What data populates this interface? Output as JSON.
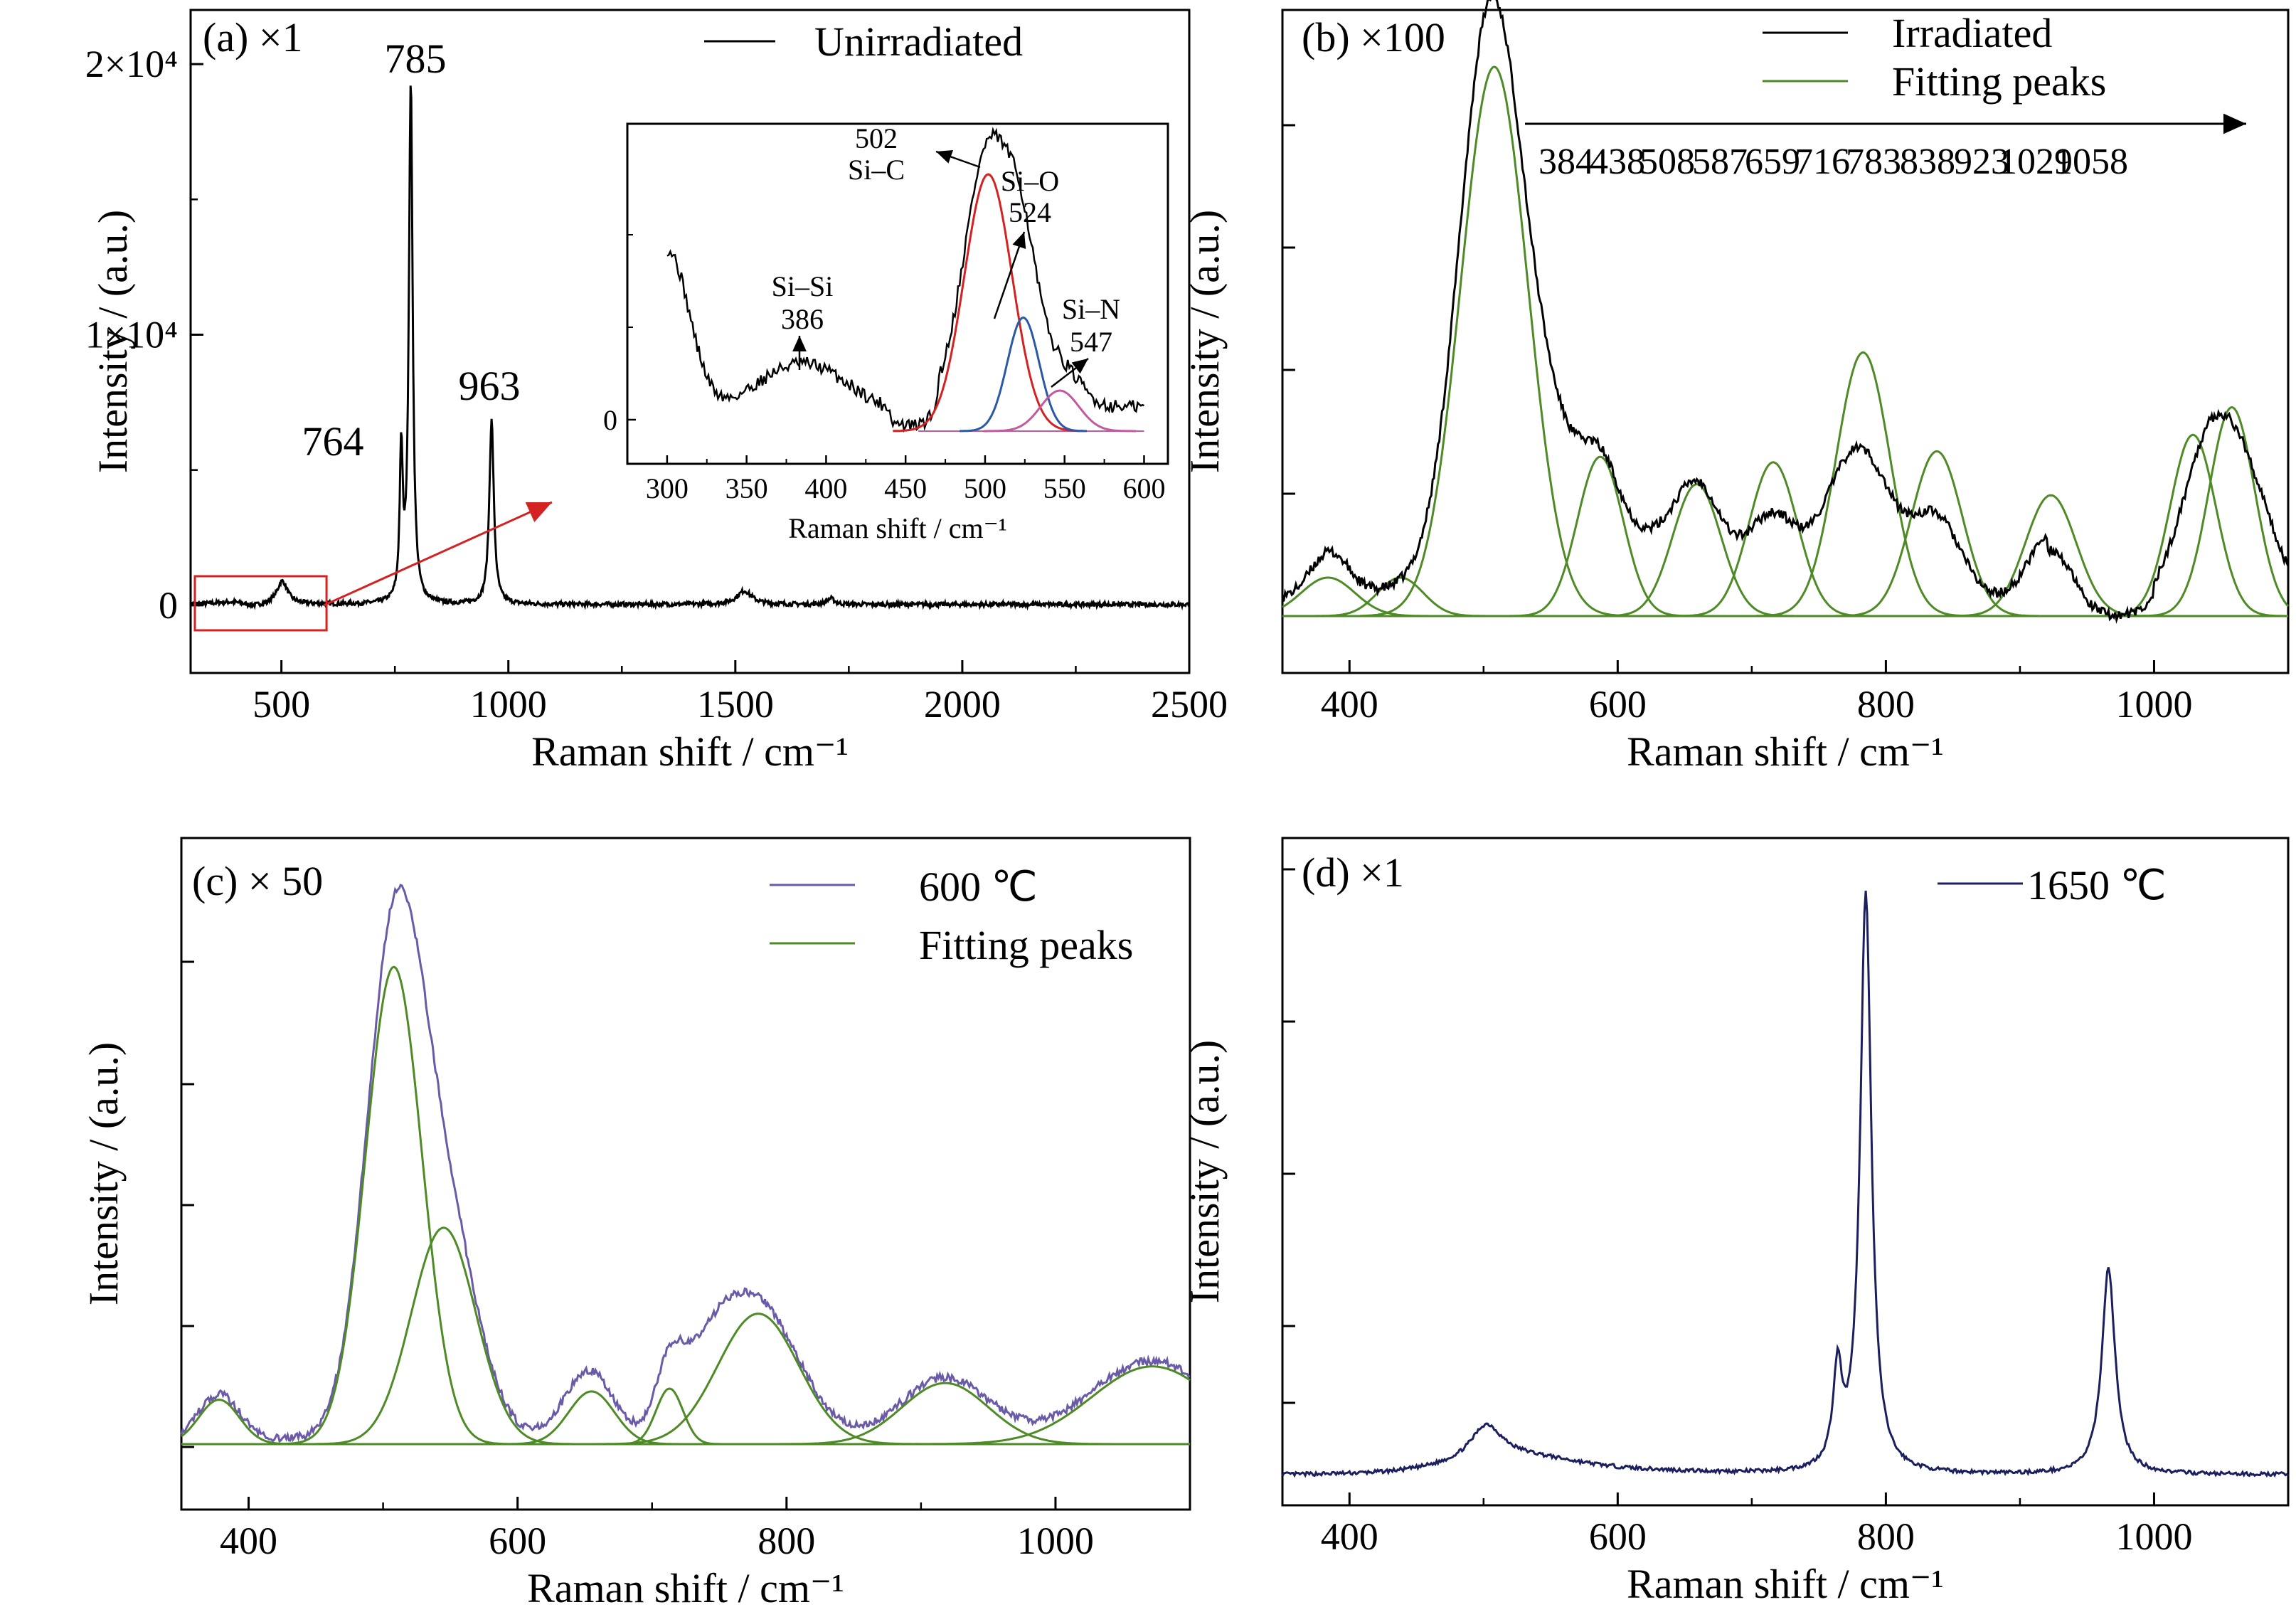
{
  "colors": {
    "black": "#000000",
    "fit_green": "#4e8a25",
    "purple": "#6a5aa8",
    "navy": "#1c1f5e",
    "red": "#d42121",
    "blue": "#2a59a6",
    "pink": "#c25a9e"
  },
  "chart_data": [
    {
      "panel": "a",
      "type": "line",
      "panel_label": "(a) ×1",
      "xlabel": "Raman shift / cm⁻¹",
      "ylabel": "Intensity / (a.u.)",
      "xlim": [
        300,
        2500
      ],
      "ylim": [
        -2500,
        22000
      ],
      "x_ticks": [
        "500",
        "1000",
        "1500",
        "2000",
        "2500"
      ],
      "y_ticks": [
        "0",
        "1×10⁴",
        "2×10⁴"
      ],
      "legend": [
        "Unirradiated"
      ],
      "legend_position": "top-right",
      "peak_labels": [
        "764",
        "785",
        "963"
      ],
      "series": [
        {
          "name": "Unirradiated",
          "peaks": [
            {
              "x": 385,
              "y": 80,
              "w": 40
            },
            {
              "x": 502,
              "y": 850,
              "w": 14
            },
            {
              "x": 764,
              "y": 5400,
              "w": 4
            },
            {
              "x": 785,
              "y": 19200,
              "w": 5
            },
            {
              "x": 963,
              "y": 6800,
              "w": 6
            },
            {
              "x": 1520,
              "y": 500,
              "w": 20
            },
            {
              "x": 1710,
              "y": 220,
              "w": 10
            }
          ]
        }
      ],
      "inset": {
        "type": "line",
        "xlabel": "Raman shift / cm⁻¹",
        "x_ticks": [
          "300",
          "350",
          "400",
          "450",
          "500",
          "550",
          "600"
        ],
        "y_ticks": [
          "0"
        ],
        "xlim": [
          275,
          615
        ],
        "annotations": [
          {
            "x": 386,
            "label_line1": "Si–Si",
            "label_line2": "386"
          },
          {
            "x": 502,
            "label_line1": "502",
            "label_line2": "Si–C"
          },
          {
            "x": 524,
            "label_line1": "Si–O",
            "label_line2": "524"
          },
          {
            "x": 547,
            "label_line1": "Si–N",
            "label_line2": "547"
          }
        ],
        "fit_peaks": [
          {
            "x": 502,
            "h": 0.95,
            "w": 15,
            "color": "#d42121"
          },
          {
            "x": 524,
            "h": 0.42,
            "w": 10,
            "color": "#2a59a6"
          },
          {
            "x": 547,
            "h": 0.15,
            "w": 12,
            "color": "#c25a9e"
          }
        ]
      }
    },
    {
      "panel": "b",
      "type": "line",
      "panel_label": "(b) ×100",
      "xlabel": "Raman shift / cm⁻¹",
      "ylabel": "Intensity / (a.u.)",
      "xlim": [
        350,
        1100
      ],
      "x_ticks": [
        "400",
        "600",
        "800",
        "1000"
      ],
      "legend": [
        "Irradiated",
        "Fitting peaks"
      ],
      "legend_position": "top-right",
      "peak_list": [
        "384",
        "438",
        "508",
        "587",
        "659",
        "716",
        "783",
        "838",
        "923",
        "1029",
        "1058"
      ],
      "fit_peaks": [
        {
          "x": 384,
          "h": 0.07,
          "w": 20
        },
        {
          "x": 438,
          "h": 0.07,
          "w": 17
        },
        {
          "x": 508,
          "h": 1.0,
          "w": 25
        },
        {
          "x": 587,
          "h": 0.29,
          "w": 17
        },
        {
          "x": 659,
          "h": 0.24,
          "w": 18
        },
        {
          "x": 716,
          "h": 0.28,
          "w": 18
        },
        {
          "x": 783,
          "h": 0.48,
          "w": 20
        },
        {
          "x": 838,
          "h": 0.3,
          "w": 19
        },
        {
          "x": 923,
          "h": 0.22,
          "w": 19
        },
        {
          "x": 1029,
          "h": 0.33,
          "w": 17
        },
        {
          "x": 1058,
          "h": 0.38,
          "w": 17
        }
      ]
    },
    {
      "panel": "c",
      "type": "line",
      "panel_label": "(c)  × 50",
      "xlabel": "Raman shift / cm⁻¹",
      "ylabel": "Intensity / (a.u.)",
      "xlim": [
        350,
        1100
      ],
      "x_ticks": [
        "400",
        "600",
        "800",
        "1000"
      ],
      "legend": [
        "600 ℃",
        "Fitting peaks"
      ],
      "legend_position": "top-right",
      "fit_peaks": [
        {
          "x": 378,
          "h": 0.08,
          "w": 15
        },
        {
          "x": 508,
          "h": 0.86,
          "w": 21
        },
        {
          "x": 545,
          "h": 0.39,
          "w": 24
        },
        {
          "x": 655,
          "h": 0.095,
          "w": 17
        },
        {
          "x": 713,
          "h": 0.1,
          "w": 10
        },
        {
          "x": 779,
          "h": 0.235,
          "w": 30
        },
        {
          "x": 918,
          "h": 0.11,
          "w": 32
        },
        {
          "x": 1072,
          "h": 0.14,
          "w": 45
        }
      ]
    },
    {
      "panel": "d",
      "type": "line",
      "panel_label": "(d) ×1",
      "xlabel": "Raman shift / cm⁻¹",
      "ylabel": "Intensity / (a.u.)",
      "xlim": [
        350,
        1100
      ],
      "x_ticks": [
        "400",
        "600",
        "800",
        "1000"
      ],
      "legend": [
        "1650 ℃"
      ],
      "legend_position": "top-right",
      "peaks": [
        {
          "x": 502,
          "h": 0.055,
          "w": 14
        },
        {
          "x": 764,
          "h": 0.15,
          "w": 4
        },
        {
          "x": 785,
          "h": 0.93,
          "w": 5
        },
        {
          "x": 966,
          "h": 0.33,
          "w": 6
        }
      ]
    }
  ]
}
